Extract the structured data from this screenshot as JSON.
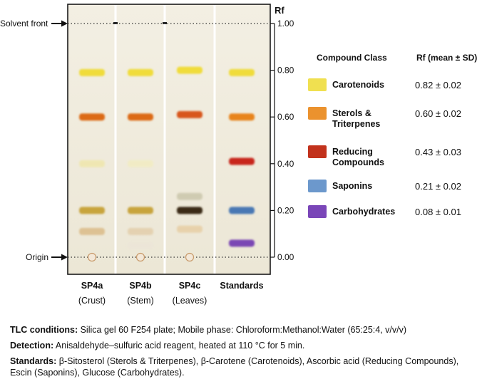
{
  "axis": {
    "title": "Rf",
    "ticks": [
      {
        "value": 1.0,
        "label": "1.00"
      },
      {
        "value": 0.8,
        "label": "0.80"
      },
      {
        "value": 0.6,
        "label": "0.60"
      },
      {
        "value": 0.4,
        "label": "0.40"
      },
      {
        "value": 0.2,
        "label": "0.20"
      },
      {
        "value": 0.0,
        "label": "0.00"
      }
    ]
  },
  "markers": {
    "solvent_front": "Solvent front",
    "origin": "Origin"
  },
  "lanes": [
    {
      "name": "SP4a",
      "sub": "(Crust)",
      "bands": [
        {
          "rf": 0.79,
          "color": "#f0dc3a",
          "opacity": 1
        },
        {
          "rf": 0.6,
          "color": "#dc6a18",
          "opacity": 1
        },
        {
          "rf": 0.4,
          "color": "#efe6a8",
          "opacity": 0.8
        },
        {
          "rf": 0.2,
          "color": "#c8a43e",
          "opacity": 1
        },
        {
          "rf": 0.11,
          "color": "#dcbd8c",
          "opacity": 0.9
        }
      ]
    },
    {
      "name": "SP4b",
      "sub": "(Stem)",
      "bands": [
        {
          "rf": 0.79,
          "color": "#f0dc3a",
          "opacity": 1
        },
        {
          "rf": 0.6,
          "color": "#dc6a18",
          "opacity": 1
        },
        {
          "rf": 0.4,
          "color": "#f2ecc0",
          "opacity": 0.8
        },
        {
          "rf": 0.2,
          "color": "#c8a43e",
          "opacity": 1
        },
        {
          "rf": 0.11,
          "color": "#e2cca8",
          "opacity": 0.8
        },
        {
          "rf": 0.05,
          "color": "#ece4d8",
          "opacity": 0.6
        }
      ]
    },
    {
      "name": "SP4c",
      "sub": "(Leaves)",
      "bands": [
        {
          "rf": 0.8,
          "color": "#f0dc3a",
          "opacity": 1
        },
        {
          "rf": 0.61,
          "color": "#d8561a",
          "opacity": 1
        },
        {
          "rf": 0.26,
          "color": "#c8c4a8",
          "opacity": 0.8
        },
        {
          "rf": 0.2,
          "color": "#3a2a18",
          "opacity": 1
        },
        {
          "rf": 0.12,
          "color": "#e6cca0",
          "opacity": 0.8
        }
      ]
    },
    {
      "name": "Standards",
      "sub": "",
      "bands": [
        {
          "rf": 0.79,
          "color": "#f0dc3a",
          "opacity": 1
        },
        {
          "rf": 0.6,
          "color": "#e8841e",
          "opacity": 1
        },
        {
          "rf": 0.41,
          "color": "#c8281c",
          "opacity": 1
        },
        {
          "rf": 0.2,
          "color": "#4a78b4",
          "opacity": 1
        },
        {
          "rf": 0.06,
          "color": "#7a46b4",
          "opacity": 1
        }
      ]
    }
  ],
  "legend": {
    "header_class": "Compound Class",
    "header_rf": "Rf (mean ± SD)",
    "items": [
      {
        "name": "Carotenoids",
        "rf": "0.82 ± 0.02",
        "color": "#f0e050"
      },
      {
        "name": "Sterols & Triterpenes",
        "rf": "0.60 ± 0.02",
        "color": "#eb922e"
      },
      {
        "name": "Reducing Compounds",
        "rf": "0.43 ± 0.03",
        "color": "#c2321c"
      },
      {
        "name": "Saponins",
        "rf": "0.21 ± 0.02",
        "color": "#6c98cc"
      },
      {
        "name": "Carbohydrates",
        "rf": "0.08 ± 0.01",
        "color": "#7a46b8"
      }
    ]
  },
  "notes": [
    {
      "label": "TLC conditions:",
      "text": " Silica gel 60 F254 plate; Mobile phase: Chloroform:Methanol:Water (65:25:4, v/v/v)"
    },
    {
      "label": "Detection:",
      "text": " Anisaldehyde–sulfuric acid reagent, heated at 110 °C for 5 min."
    },
    {
      "label": "Standards:",
      "text": " β-Sitosterol (Sterols & Triterpenes), β-Carotene (Carotenoids), Ascorbic acid (Reducing Compounds), Escin (Saponins), Glucose (Carbohydrates)."
    }
  ]
}
